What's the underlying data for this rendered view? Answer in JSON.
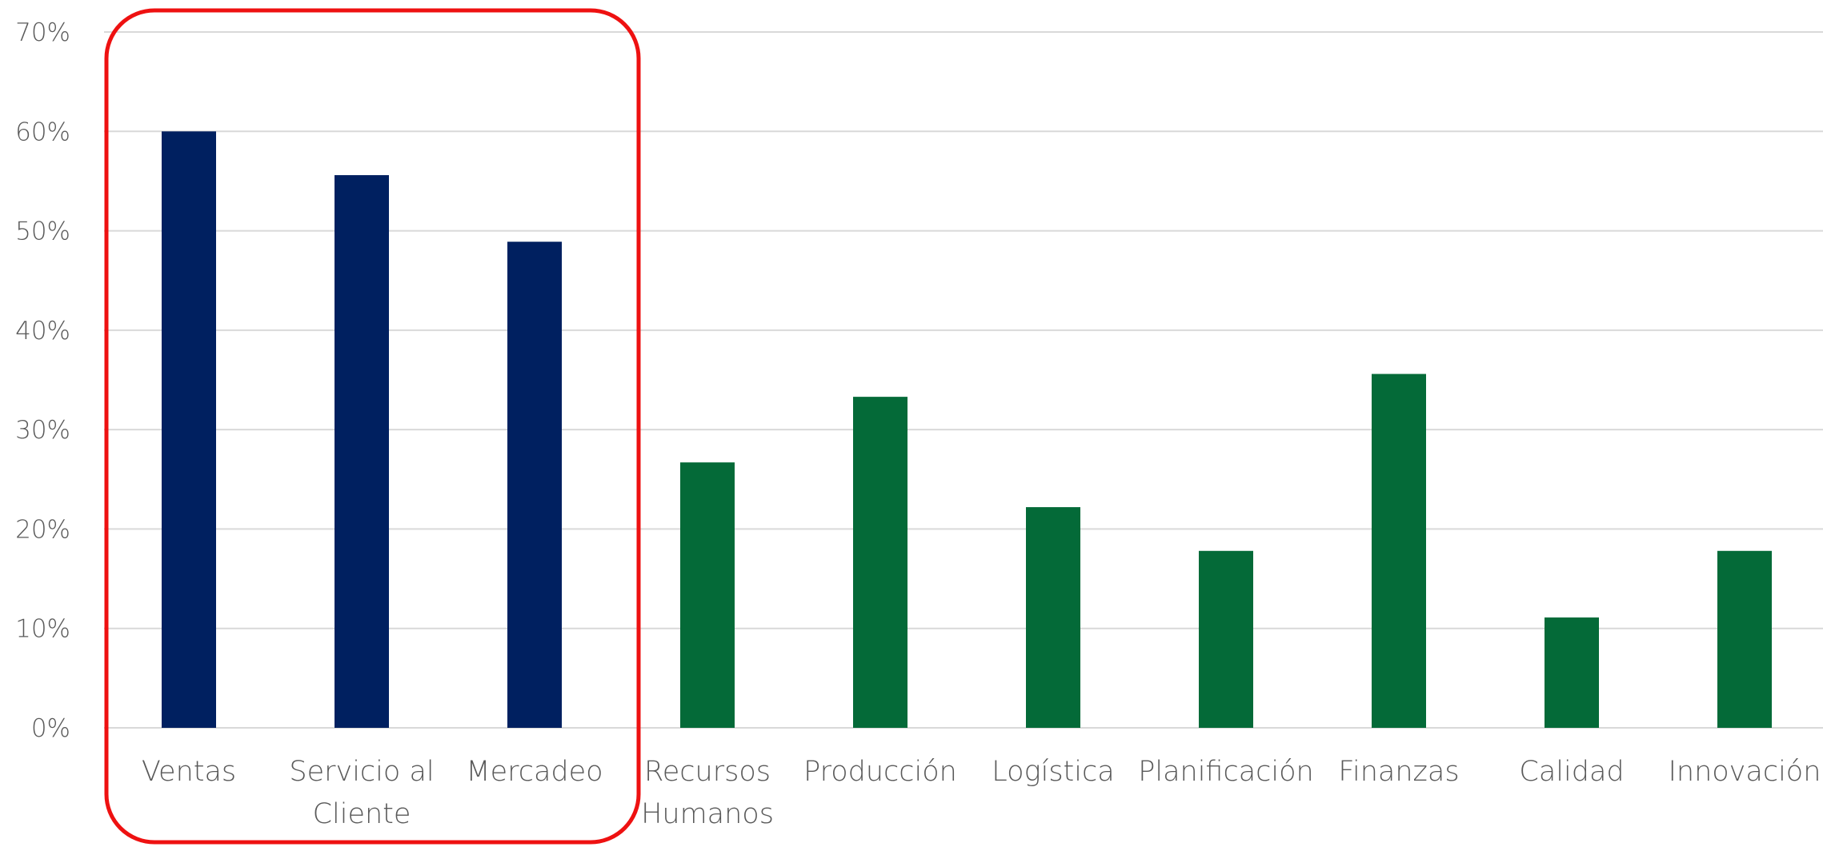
{
  "chart_data": {
    "type": "bar",
    "title": "",
    "xlabel": "",
    "ylabel": "",
    "ylim": [
      0,
      0.7
    ],
    "yticks": [
      "0%",
      "10%",
      "20%",
      "30%",
      "40%",
      "50%",
      "60%",
      "70%"
    ],
    "y_tick_values": [
      0,
      0.1,
      0.2,
      0.3,
      0.4,
      0.5,
      0.6,
      0.7
    ],
    "grid": true,
    "categories": [
      [
        "Ventas"
      ],
      [
        "Servicio al",
        "Cliente"
      ],
      [
        "Mercadeo"
      ],
      [
        "Recursos",
        "Humanos"
      ],
      [
        "Producción"
      ],
      [
        "Logística"
      ],
      [
        "Planificación"
      ],
      [
        "Finanzas"
      ],
      [
        "Calidad"
      ],
      [
        "Innovación"
      ]
    ],
    "values": [
      0.6,
      0.556,
      0.489,
      0.267,
      0.333,
      0.222,
      0.178,
      0.356,
      0.111,
      0.178
    ],
    "highlighted": [
      true,
      true,
      true,
      false,
      false,
      false,
      false,
      false,
      false,
      false
    ],
    "colors": {
      "highlighted": "#002060",
      "other": "#046A38",
      "highlight_box": "#ee1111"
    }
  }
}
